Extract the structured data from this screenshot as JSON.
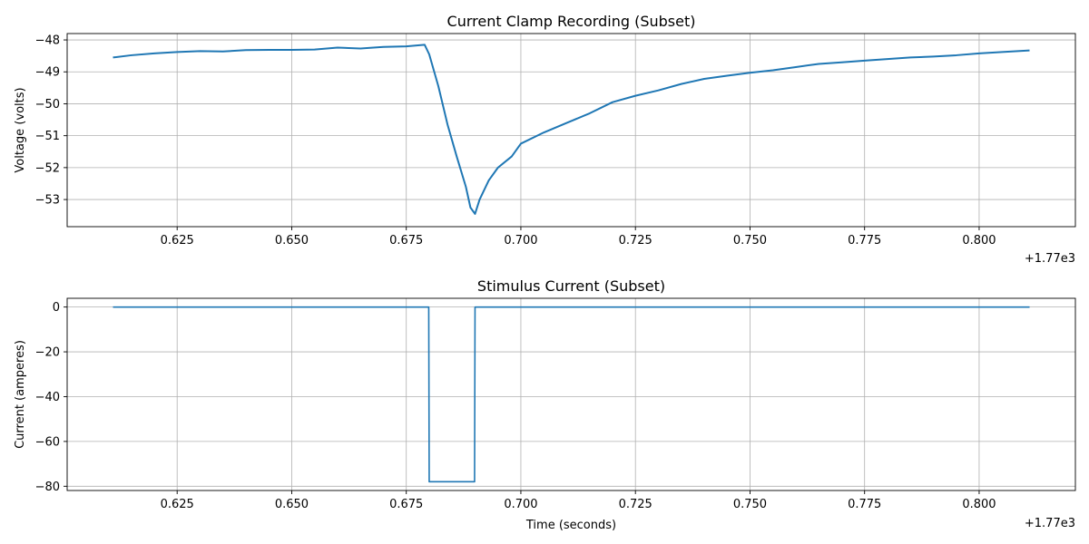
{
  "chart_data": [
    {
      "type": "line",
      "title": "Current Clamp Recording (Subset)",
      "xlabel": "",
      "ylabel": "Voltage (volts)",
      "x_offset_label": "+1.77e3",
      "xlim": [
        0.601,
        0.821
      ],
      "ylim": [
        -53.85,
        -47.8
      ],
      "xticks": [
        0.625,
        0.65,
        0.675,
        0.7,
        0.725,
        0.75,
        0.775,
        0.8
      ],
      "xtick_labels": [
        "0.625",
        "0.650",
        "0.675",
        "0.700",
        "0.725",
        "0.750",
        "0.775",
        "0.800"
      ],
      "yticks": [
        -53,
        -52,
        -51,
        -50,
        -49,
        -48
      ],
      "ytick_labels": [
        "−53",
        "−52",
        "−51",
        "−50",
        "−49",
        "−48"
      ],
      "grid": true,
      "series": [
        {
          "color": "#1f77b4",
          "x": [
            0.611,
            0.615,
            0.62,
            0.625,
            0.63,
            0.635,
            0.64,
            0.645,
            0.65,
            0.655,
            0.66,
            0.665,
            0.67,
            0.675,
            0.679,
            0.68,
            0.682,
            0.684,
            0.686,
            0.688,
            0.689,
            0.69,
            0.691,
            0.693,
            0.695,
            0.698,
            0.7,
            0.705,
            0.71,
            0.715,
            0.72,
            0.725,
            0.73,
            0.735,
            0.74,
            0.745,
            0.75,
            0.755,
            0.76,
            0.765,
            0.77,
            0.775,
            0.78,
            0.785,
            0.79,
            0.795,
            0.8,
            0.805,
            0.811
          ],
          "y": [
            -48.55,
            -48.48,
            -48.42,
            -48.38,
            -48.35,
            -48.36,
            -48.32,
            -48.31,
            -48.31,
            -48.3,
            -48.24,
            -48.27,
            -48.22,
            -48.2,
            -48.15,
            -48.45,
            -49.45,
            -50.65,
            -51.65,
            -52.6,
            -53.25,
            -53.45,
            -53.0,
            -52.4,
            -52.0,
            -51.65,
            -51.25,
            -50.9,
            -50.6,
            -50.3,
            -49.95,
            -49.75,
            -49.58,
            -49.38,
            -49.22,
            -49.12,
            -49.03,
            -48.95,
            -48.85,
            -48.75,
            -48.7,
            -48.65,
            -48.6,
            -48.55,
            -48.52,
            -48.48,
            -48.42,
            -48.38,
            -48.33
          ]
        }
      ]
    },
    {
      "type": "line",
      "title": "Stimulus Current (Subset)",
      "xlabel": "Time (seconds)",
      "ylabel": "Current (amperes)",
      "x_offset_label": "+1.77e3",
      "xlim": [
        0.601,
        0.821
      ],
      "ylim": [
        -81.9,
        3.9
      ],
      "xticks": [
        0.625,
        0.65,
        0.675,
        0.7,
        0.725,
        0.75,
        0.775,
        0.8
      ],
      "xtick_labels": [
        "0.625",
        "0.650",
        "0.675",
        "0.700",
        "0.725",
        "0.750",
        "0.775",
        "0.800"
      ],
      "yticks": [
        -80,
        -60,
        -40,
        -20,
        0
      ],
      "ytick_labels": [
        "−80",
        "−60",
        "−40",
        "−20",
        "0"
      ],
      "grid": true,
      "series": [
        {
          "color": "#1f77b4",
          "x": [
            0.611,
            0.6799,
            0.68,
            0.6899,
            0.69,
            0.811
          ],
          "y": [
            0,
            0,
            -78,
            -78,
            0,
            0
          ]
        }
      ]
    }
  ]
}
